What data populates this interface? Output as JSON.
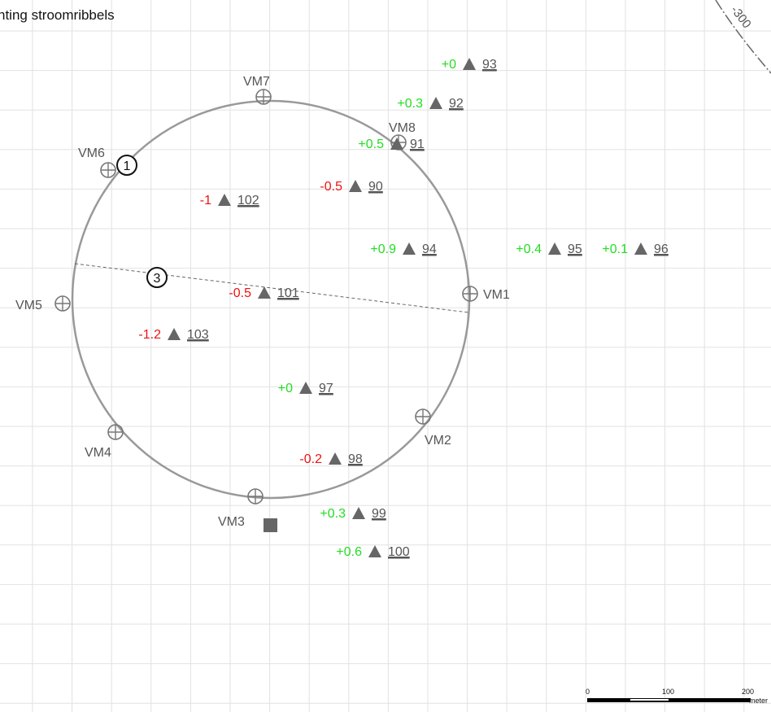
{
  "title": "nting stroomribbels",
  "colors": {
    "positive": "#22dd22",
    "negative": "#ee1111",
    "grid": "#e2e2e2",
    "circle": "#999999",
    "marker": "#666666"
  },
  "contour_label": "-300",
  "reference_points": [
    {
      "label": "VM1"
    },
    {
      "label": "VM2"
    },
    {
      "label": "VM3"
    },
    {
      "label": "VM4"
    },
    {
      "label": "VM5"
    },
    {
      "label": "VM6"
    },
    {
      "label": "VM7"
    },
    {
      "label": "VM8"
    }
  ],
  "callouts": [
    {
      "label": "1"
    },
    {
      "label": "3"
    }
  ],
  "measurement_points": [
    {
      "id": "93",
      "delta": "+0",
      "sign": "positive"
    },
    {
      "id": "92",
      "delta": "+0.3",
      "sign": "positive"
    },
    {
      "id": "91",
      "delta": "+0.5",
      "sign": "positive"
    },
    {
      "id": "90",
      "delta": "-0.5",
      "sign": "negative"
    },
    {
      "id": "102",
      "delta": "-1",
      "sign": "negative"
    },
    {
      "id": "94",
      "delta": "+0.9",
      "sign": "positive"
    },
    {
      "id": "95",
      "delta": "+0.4",
      "sign": "positive"
    },
    {
      "id": "96",
      "delta": "+0.1",
      "sign": "positive"
    },
    {
      "id": "101",
      "delta": "-0.5",
      "sign": "negative"
    },
    {
      "id": "103",
      "delta": "-1.2",
      "sign": "negative"
    },
    {
      "id": "97",
      "delta": "+0",
      "sign": "positive"
    },
    {
      "id": "98",
      "delta": "-0.2",
      "sign": "negative"
    },
    {
      "id": "99",
      "delta": "+0.3",
      "sign": "positive"
    },
    {
      "id": "100",
      "delta": "+0.6",
      "sign": "positive"
    }
  ],
  "scale_bar": {
    "ticks": [
      "0",
      "100",
      "200"
    ],
    "unit": "meter"
  }
}
